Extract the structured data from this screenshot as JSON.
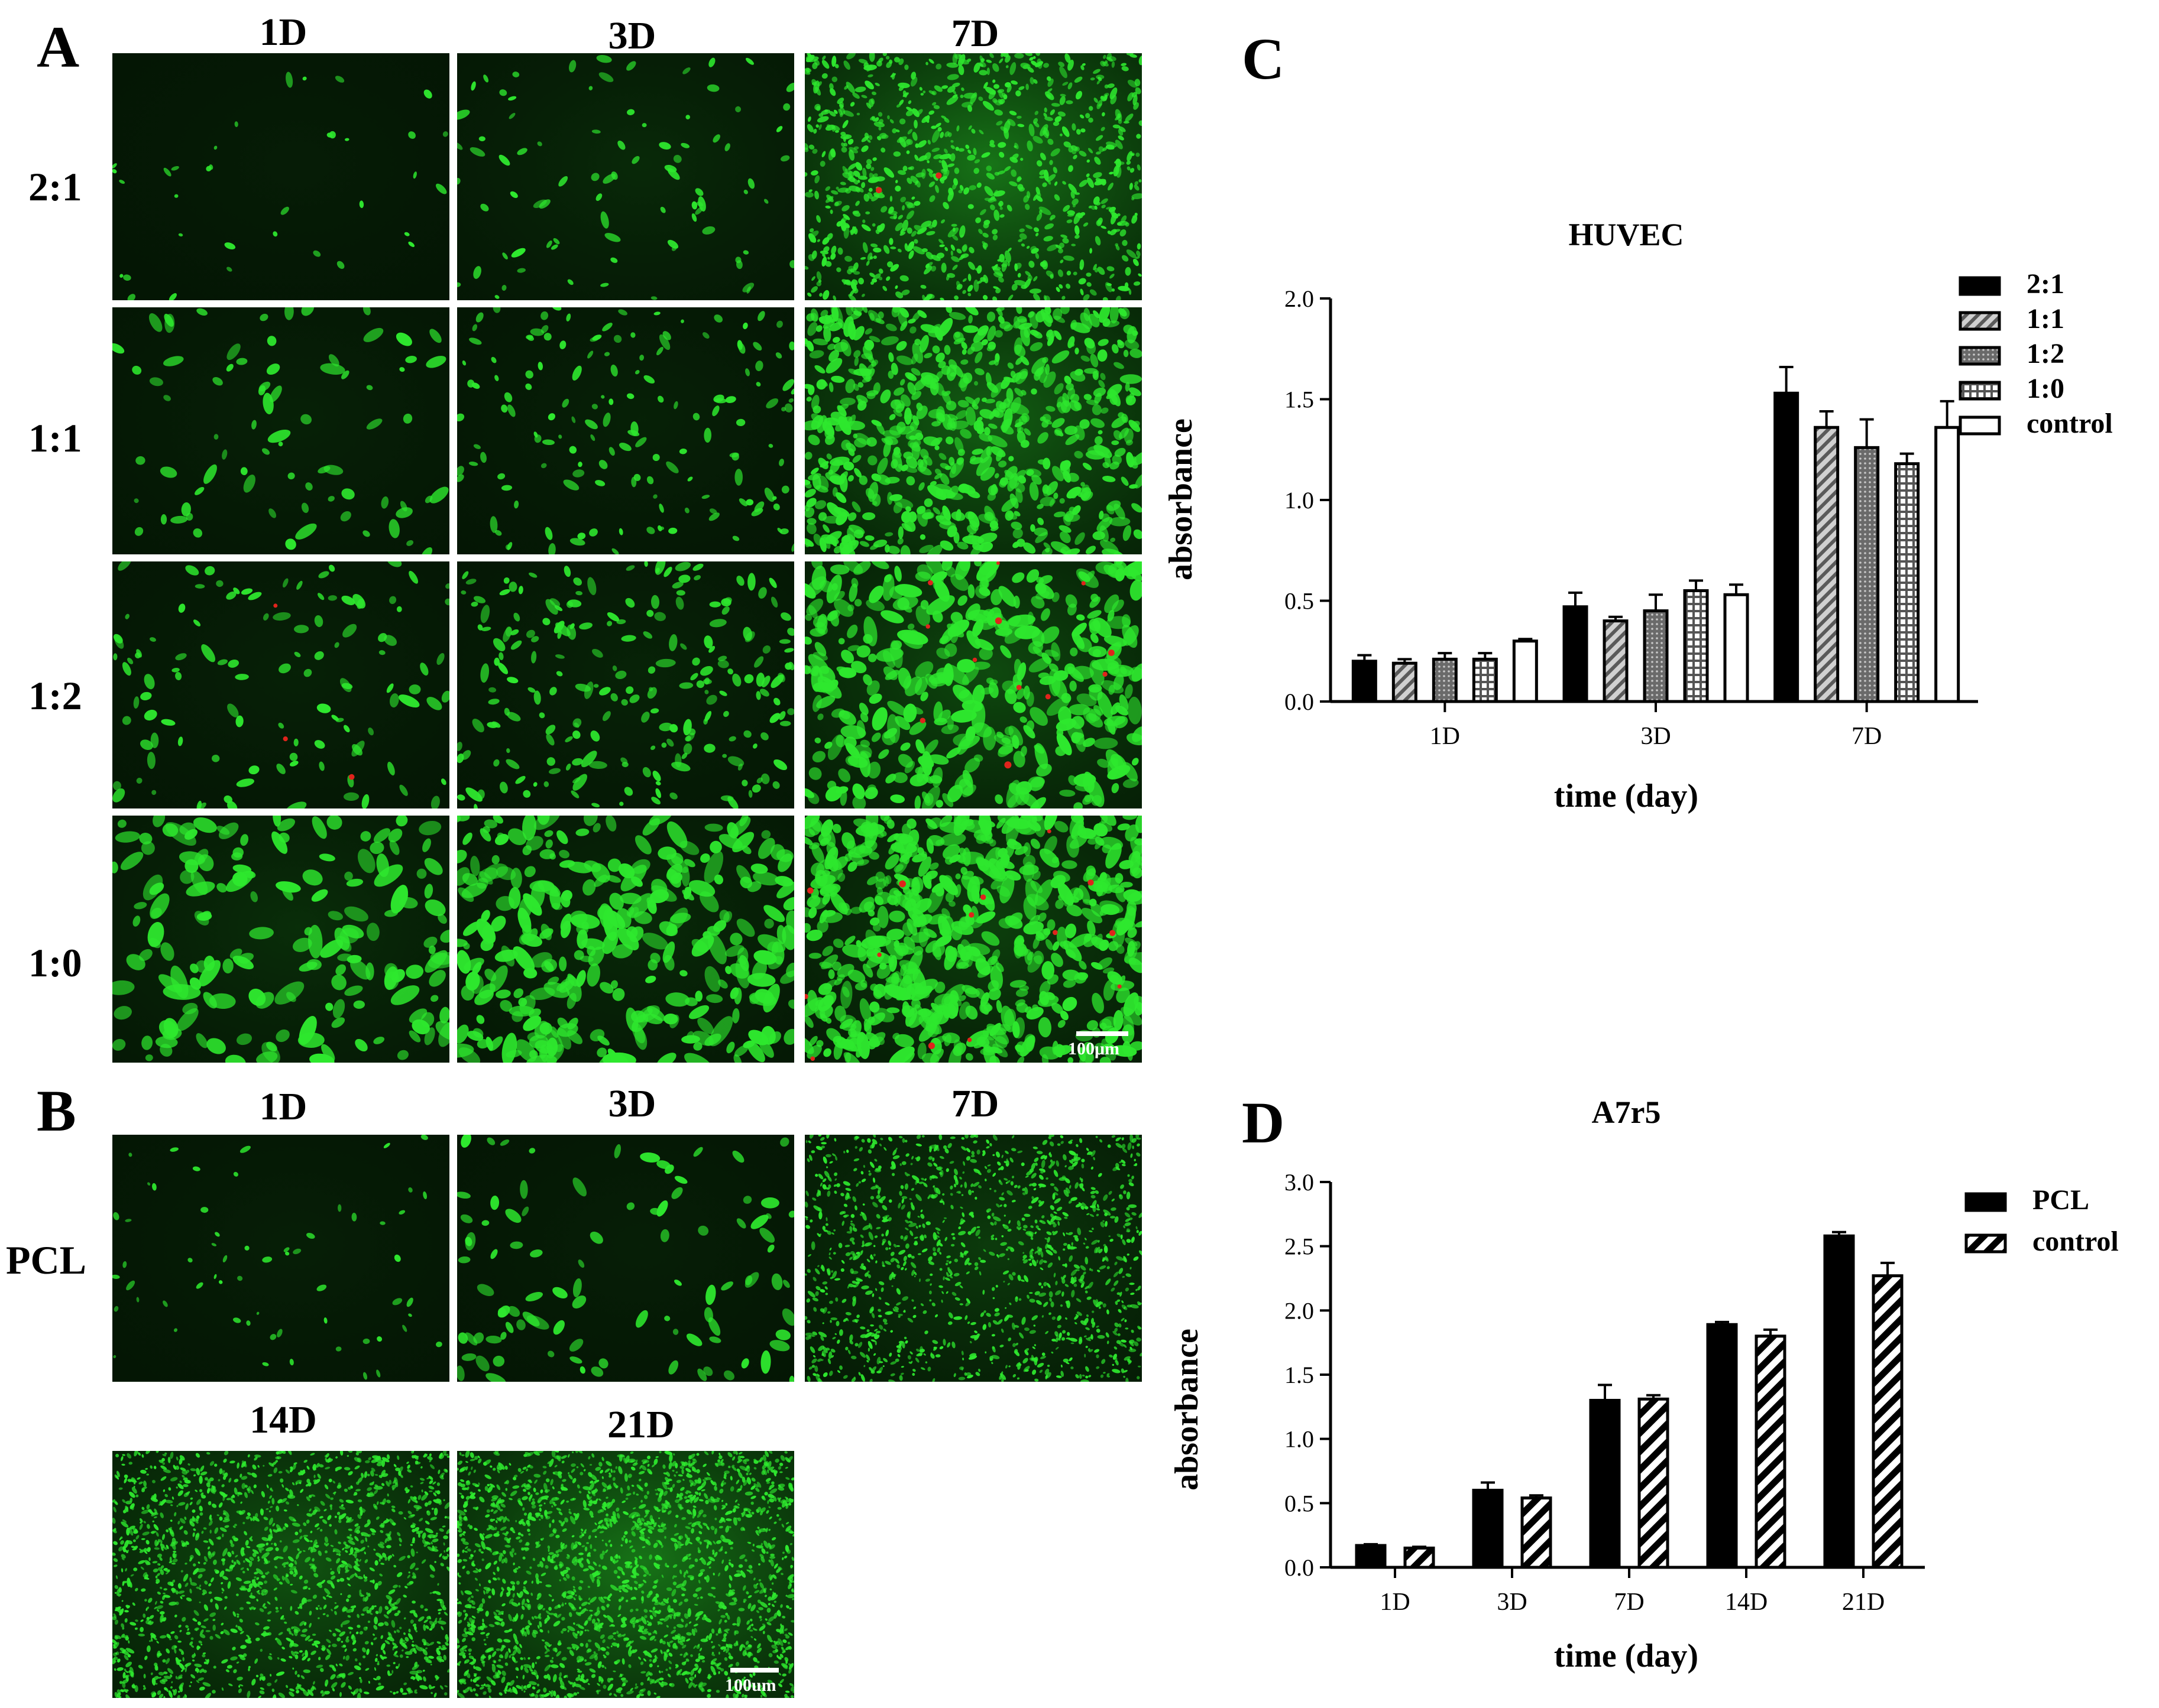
{
  "panel_A": {
    "letter": "A",
    "col_labels": [
      "1D",
      "3D",
      "7D"
    ],
    "row_labels": [
      "2:1",
      "1:1",
      "1:2",
      "1:0"
    ],
    "scale_bar": "100μm"
  },
  "panel_B": {
    "letter": "B",
    "col_labels_top": [
      "1D",
      "3D",
      "7D"
    ],
    "col_labels_bottom": [
      "14D",
      "21D"
    ],
    "row_label": "PCL",
    "scale_bar": "100um"
  },
  "panel_C": {
    "letter": "C"
  },
  "panel_D": {
    "letter": "D"
  },
  "colors": {
    "bar_dark": "#000000",
    "cell_green": "#2ee82e",
    "dead_red": "#e0241c"
  },
  "chart_data": [
    {
      "id": "C",
      "type": "bar",
      "title": "HUVEC",
      "xlabel": "time (day)",
      "ylabel": "absorbance",
      "categories": [
        "1D",
        "3D",
        "7D"
      ],
      "ylim": [
        0,
        2.0
      ],
      "yticks": [
        "0.0",
        "0.5",
        "1.0",
        "1.5",
        "2.0"
      ],
      "legend_position": "top-right",
      "series": [
        {
          "name": "2:1",
          "pattern": "solid",
          "values": [
            0.2,
            0.47,
            1.53
          ],
          "errors": [
            0.03,
            0.07,
            0.13
          ]
        },
        {
          "name": "1:1",
          "pattern": "diagonal",
          "values": [
            0.19,
            0.4,
            1.36
          ],
          "errors": [
            0.02,
            0.02,
            0.08
          ]
        },
        {
          "name": "1:2",
          "pattern": "dots",
          "values": [
            0.21,
            0.45,
            1.26
          ],
          "errors": [
            0.03,
            0.08,
            0.14
          ]
        },
        {
          "name": "1:0",
          "pattern": "grid",
          "values": [
            0.21,
            0.55,
            1.18
          ],
          "errors": [
            0.03,
            0.05,
            0.05
          ]
        },
        {
          "name": "control",
          "pattern": "hollow",
          "values": [
            0.3,
            0.53,
            1.36
          ],
          "errors": [
            0.01,
            0.05,
            0.13
          ]
        }
      ]
    },
    {
      "id": "D",
      "type": "bar",
      "title": "A7r5",
      "xlabel": "time (day)",
      "ylabel": "absorbance",
      "categories": [
        "1D",
        "3D",
        "7D",
        "14D",
        "21D"
      ],
      "ylim": [
        0,
        3.0
      ],
      "yticks": [
        "0.0",
        "0.5",
        "1.0",
        "1.5",
        "2.0",
        "2.5",
        "3.0"
      ],
      "legend_position": "top-right",
      "series": [
        {
          "name": "PCL",
          "pattern": "solid",
          "values": [
            0.17,
            0.6,
            1.3,
            1.89,
            2.58
          ],
          "errors": [
            0.01,
            0.06,
            0.12,
            0.02,
            0.03
          ]
        },
        {
          "name": "control",
          "pattern": "diagonal-bold",
          "values": [
            0.15,
            0.54,
            1.31,
            1.8,
            2.27
          ],
          "errors": [
            0.01,
            0.02,
            0.03,
            0.05,
            0.1
          ]
        }
      ]
    }
  ]
}
